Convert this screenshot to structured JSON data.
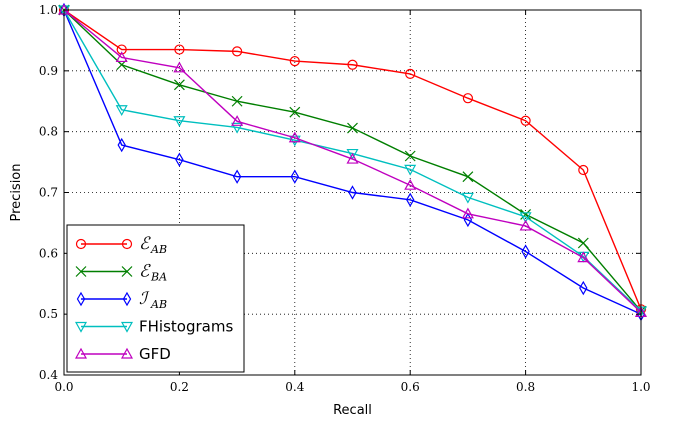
{
  "chart_data": {
    "type": "line",
    "xlabel": "Recall",
    "ylabel": "Precision",
    "xlim": [
      0.0,
      1.0
    ],
    "ylim": [
      0.4,
      1.0
    ],
    "xticks": [
      "0.0",
      "0.2",
      "0.4",
      "0.6",
      "0.8",
      "1.0"
    ],
    "yticks": [
      "0.4",
      "0.5",
      "0.6",
      "0.7",
      "0.8",
      "0.9",
      "1.0"
    ],
    "grid": true,
    "legend_position": "bottom-left",
    "x": [
      0.0,
      0.1,
      0.2,
      0.3,
      0.4,
      0.5,
      0.6,
      0.7,
      0.8,
      0.9,
      1.0
    ],
    "series": [
      {
        "name": "E_AB",
        "legend_main": "ℰ",
        "legend_sub": "AB",
        "color": "#ff0000",
        "marker": "circle",
        "values": [
          1.0,
          0.935,
          0.935,
          0.932,
          0.916,
          0.91,
          0.895,
          0.855,
          0.818,
          0.737,
          0.508
        ]
      },
      {
        "name": "E_BA",
        "legend_main": "ℰ",
        "legend_sub": "BA",
        "color": "#007f00",
        "marker": "x",
        "values": [
          1.0,
          0.91,
          0.877,
          0.85,
          0.832,
          0.806,
          0.76,
          0.726,
          0.664,
          0.617,
          0.505
        ]
      },
      {
        "name": "I_AB",
        "legend_main": "ℐ",
        "legend_sub": "AB",
        "color": "#0000ff",
        "marker": "diamond",
        "values": [
          1.0,
          0.778,
          0.754,
          0.726,
          0.726,
          0.7,
          0.688,
          0.655,
          0.603,
          0.543,
          0.5
        ]
      },
      {
        "name": "FHistograms",
        "legend_main": "FHistograms",
        "legend_sub": "",
        "color": "#00bfbf",
        "marker": "triangle-down",
        "values": [
          1.0,
          0.836,
          0.818,
          0.807,
          0.786,
          0.764,
          0.738,
          0.692,
          0.66,
          0.595,
          0.505
        ]
      },
      {
        "name": "GFD",
        "legend_main": "GFD",
        "legend_sub": "",
        "color": "#bf00bf",
        "marker": "triangle-up",
        "values": [
          1.0,
          0.922,
          0.905,
          0.817,
          0.79,
          0.755,
          0.712,
          0.665,
          0.645,
          0.593,
          0.503
        ]
      }
    ]
  }
}
